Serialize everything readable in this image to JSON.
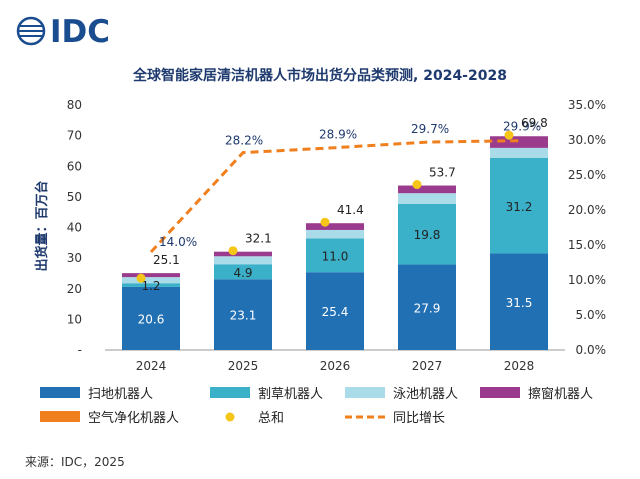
{
  "brand": {
    "text": "IDC",
    "color": "#1a4d8f"
  },
  "chart_data": {
    "type": "bar",
    "stacked": true,
    "title": "全球智能家居清洁机器人市场出货分品类预测, 2024-2028",
    "ylabel": "出货量：百万台",
    "categories": [
      "2024",
      "2025",
      "2026",
      "2027",
      "2028"
    ],
    "ylim": [
      0,
      80
    ],
    "yticks": [
      "-",
      "10",
      "20",
      "30",
      "40",
      "50",
      "60",
      "70",
      "80"
    ],
    "y2lim": [
      0,
      35
    ],
    "y2ticks": [
      "0.0%",
      "5.0%",
      "10.0%",
      "15.0%",
      "20.0%",
      "25.0%",
      "30.0%",
      "35.0%"
    ],
    "series": [
      {
        "name": "扫地机器人",
        "color": "#2270b4",
        "values": [
          20.6,
          23.1,
          25.4,
          27.9,
          31.5
        ],
        "labels": [
          "20.6",
          "23.1",
          "25.4",
          "27.9",
          "31.5"
        ],
        "label_color": "#ffffff"
      },
      {
        "name": "割草机器人",
        "color": "#3bb0c9",
        "values": [
          1.2,
          4.9,
          11.0,
          19.8,
          31.2
        ],
        "labels": [
          "1.2",
          "4.9",
          "11.0",
          "19.8",
          "31.2"
        ],
        "label_color": "#222222"
      },
      {
        "name": "泳池机器人",
        "color": "#a9dbe8",
        "values": [
          2.0,
          2.6,
          2.8,
          3.5,
          3.3
        ]
      },
      {
        "name": "擦窗机器人",
        "color": "#9b3b8e",
        "values": [
          1.3,
          1.5,
          2.2,
          2.5,
          3.8
        ]
      },
      {
        "name": "空气净化机器人",
        "color": "#f07f1e",
        "values": [
          0,
          0,
          0,
          0,
          0
        ]
      }
    ],
    "totals": {
      "name": "总和",
      "color": "#f5c518",
      "values": [
        25.1,
        32.1,
        41.4,
        53.7,
        69.8
      ],
      "labels": [
        "25.1",
        "32.1",
        "41.4",
        "53.7",
        "69.8"
      ]
    },
    "growth": {
      "name": "同比增长",
      "color": "#f07f1e",
      "axis": "right",
      "values": [
        14.0,
        28.2,
        28.9,
        29.7,
        29.9
      ],
      "labels": [
        "14.0%",
        "28.2%",
        "28.9%",
        "29.7%",
        "29.9%"
      ]
    },
    "legend_position": "bottom",
    "grid": false
  },
  "source": "来源：IDC，2025"
}
